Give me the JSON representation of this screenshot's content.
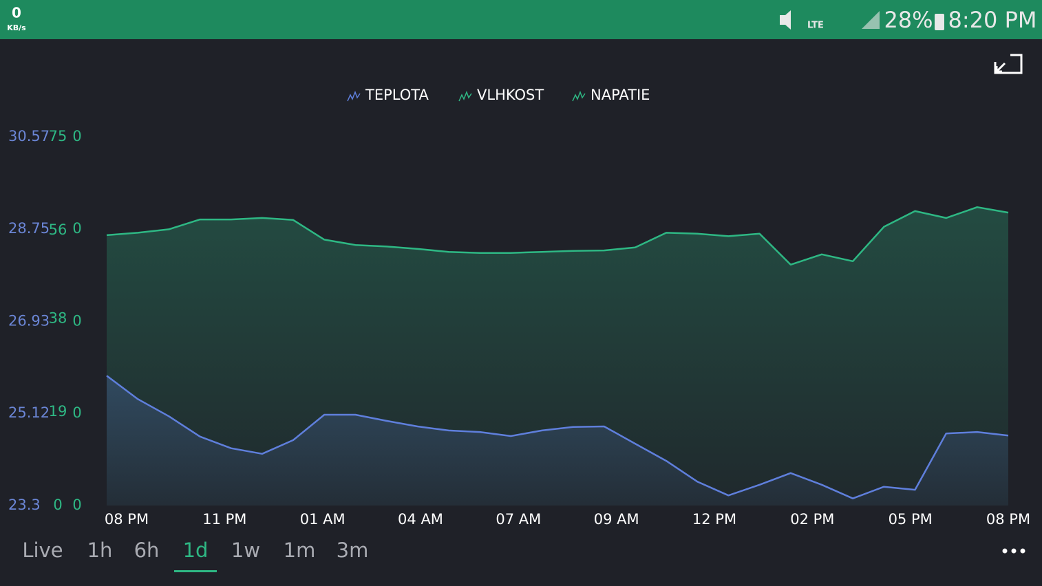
{
  "status_bar": {
    "speed": "0",
    "speed_unit": "KB/s",
    "battery": "28%",
    "time": "8:20 PM",
    "network": "LTE"
  },
  "chart_data": {
    "type": "line",
    "xticks": [
      "08 PM",
      "11 PM",
      "01 AM",
      "04 AM",
      "07 AM",
      "09 AM",
      "12 PM",
      "02 PM",
      "05 PM",
      "08 PM"
    ],
    "series": [
      {
        "name": "TEPLOTA",
        "color": "#5f7fdc",
        "values": [
          25.86,
          25.4,
          25.06,
          24.66,
          24.43,
          24.32,
          24.59,
          25.09,
          25.09,
          24.97,
          24.86,
          24.78,
          24.75,
          24.67,
          24.78,
          24.85,
          24.86,
          24.52,
          24.18,
          23.77,
          23.5,
          23.71,
          23.94,
          23.71,
          23.44,
          23.67,
          23.61,
          24.72,
          24.75,
          24.68
        ]
      },
      {
        "name": "VLHKOST",
        "color": "#2eb884",
        "axis": "y2",
        "values": [
          55.0,
          55.5,
          56.2,
          58.2,
          58.2,
          58.5,
          58.1,
          54.1,
          53.0,
          52.7,
          52.2,
          51.6,
          51.4,
          51.4,
          51.6,
          51.8,
          51.9,
          52.5,
          55.5,
          55.3,
          54.8,
          55.3,
          49.0,
          51.1,
          49.7,
          56.7,
          59.9,
          58.5,
          60.7,
          59.6
        ]
      },
      {
        "name": "NAPATIE",
        "color": "#2eb884"
      }
    ],
    "ylim": [
      23.3,
      30.57
    ],
    "yticks": [
      23.3,
      25.12,
      26.93,
      28.75,
      30.57
    ],
    "y2lim": [
      0,
      75
    ],
    "y2ticks": [
      0,
      19,
      38,
      56,
      75
    ],
    "y3ticks": [
      0,
      0,
      0,
      0,
      0
    ]
  },
  "range_selector": {
    "options": [
      "Live",
      "1h",
      "6h",
      "1d",
      "1w",
      "1m",
      "3m"
    ],
    "selected": 3
  }
}
